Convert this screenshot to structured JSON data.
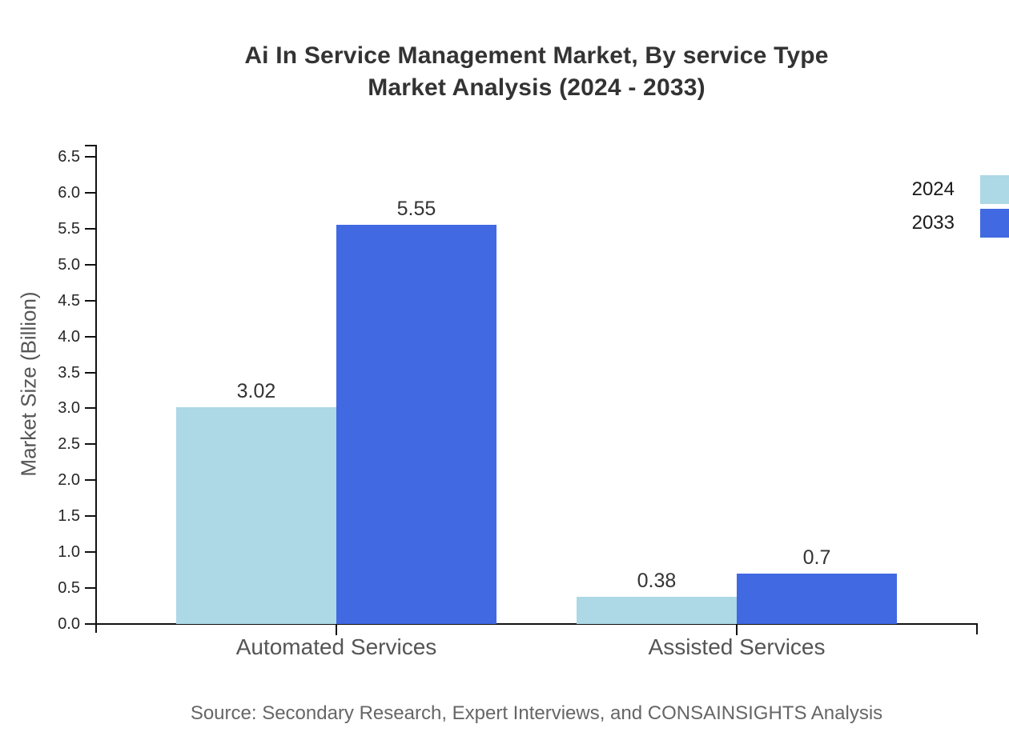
{
  "header": {
    "title_line1": "Ai In Service Management Market, By service Type",
    "title_line2": "Market Analysis (2024 - 2033)"
  },
  "footer": {
    "source": "Source: Secondary Research, Expert Interviews, and CONSAINSIGHTS Analysis"
  },
  "chart_data": {
    "type": "bar",
    "title": "Ai In Service Management Market, By service Type Market Analysis (2024 - 2033)",
    "categories": [
      "Automated Services",
      "Assisted Services"
    ],
    "series": [
      {
        "name": "2024",
        "color": "#add8e6",
        "values": [
          3.02,
          0.38
        ]
      },
      {
        "name": "2033",
        "color": "#4169e1",
        "values": [
          5.55,
          0.7
        ]
      }
    ],
    "value_labels": [
      [
        "3.02",
        "0.38"
      ],
      [
        "5.55",
        "0.7"
      ]
    ],
    "xlabel": "",
    "ylabel": "Market Size (Billion)",
    "ylim": [
      0,
      6.5
    ],
    "ytick_step": 0.5,
    "ytick_decimals": 1,
    "grid": false,
    "legend_position": "top-right",
    "colors": {
      "axis": "#111111",
      "tick_label": "#262626",
      "category_label": "#555555",
      "value_label": "#333333",
      "title": "#333333",
      "source": "#666666"
    }
  }
}
